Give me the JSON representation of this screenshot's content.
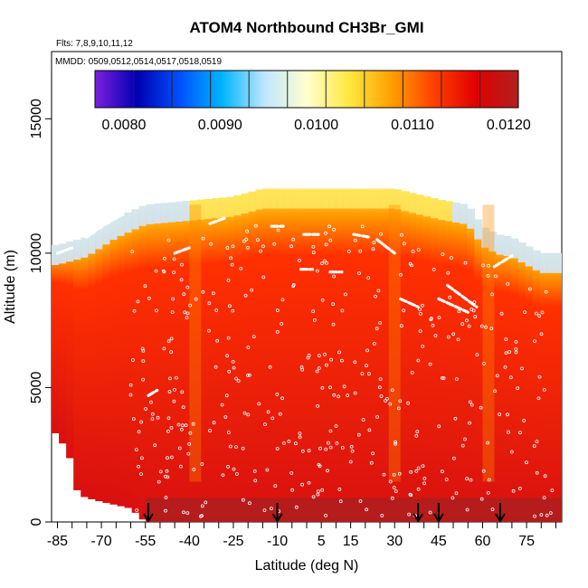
{
  "chart_data": {
    "type": "heatmap",
    "title": "ATOM4 Northbound CH3Br_GMI",
    "subtitle_flights": "Flts: 7,8,9,10,11,12",
    "subtitle_dates": "MMDD: 0509,0512,0514,0517,0518,0519",
    "xlabel": "Latitude (deg N)",
    "ylabel": "Altitude (m)",
    "xlim": [
      -87,
      87
    ],
    "ylim": [
      0,
      17500
    ],
    "x_ticks": [
      -85,
      -70,
      -55,
      -40,
      -25,
      -10,
      5,
      15,
      30,
      45,
      60,
      75
    ],
    "y_ticks": [
      0,
      5000,
      10000,
      15000
    ],
    "colorbar": {
      "range": [
        0.0077,
        0.0121
      ],
      "ticks": [
        0.008,
        0.009,
        0.01,
        0.011,
        0.012
      ],
      "tick_labels": [
        "0.0080",
        "0.0090",
        "0.0100",
        "0.0110",
        "0.0120"
      ],
      "colors": [
        "#7b1fe0",
        "#0000b0",
        "#0050ff",
        "#00b4ff",
        "#bfe6ff",
        "#ffffd0",
        "#ffe840",
        "#ffa000",
        "#ff4000",
        "#e00000",
        "#b02020"
      ]
    },
    "model_field": {
      "description_values": "CH3Br mixing ratio, latitude x altitude curtain",
      "top_altitude_by_lat": [
        [
          -85,
          10300
        ],
        [
          -75,
          10600
        ],
        [
          -65,
          11300
        ],
        [
          -55,
          11800
        ],
        [
          -45,
          11900
        ],
        [
          -35,
          12000
        ],
        [
          -25,
          12100
        ],
        [
          -15,
          12400
        ],
        [
          0,
          12400
        ],
        [
          15,
          12400
        ],
        [
          30,
          12400
        ],
        [
          45,
          12000
        ],
        [
          55,
          11800
        ],
        [
          60,
          11000
        ],
        [
          65,
          10700
        ],
        [
          70,
          10600
        ],
        [
          80,
          10000
        ]
      ],
      "bottom_altitude_by_lat": [
        [
          -85,
          3300
        ],
        [
          -80,
          2200
        ],
        [
          -78,
          1000
        ],
        [
          -72,
          800
        ],
        [
          -60,
          500
        ],
        [
          -55,
          0
        ],
        [
          85,
          0
        ]
      ],
      "enhancement_columns_lat": [
        -38,
        30,
        62
      ]
    },
    "flight_track_segments": [
      [
        [
          -85,
          10000
        ],
        [
          -80,
          10200
        ]
      ],
      [
        [
          -75,
          10600
        ],
        [
          -70,
          11000
        ],
        [
          -62,
          11500
        ]
      ],
      [
        [
          -45,
          10000
        ],
        [
          -40,
          10200
        ]
      ],
      [
        [
          -33,
          11100
        ],
        [
          -28,
          11300
        ]
      ],
      [
        [
          -12,
          11000
        ],
        [
          -8,
          11000
        ]
      ],
      [
        [
          -2,
          9400
        ],
        [
          2,
          9400
        ]
      ],
      [
        [
          8,
          9300
        ],
        [
          12,
          9300
        ]
      ],
      [
        [
          -1,
          10700
        ],
        [
          4,
          10700
        ]
      ],
      [
        [
          16,
          10700
        ],
        [
          21,
          10600
        ]
      ],
      [
        [
          24,
          10500
        ],
        [
          30,
          10000
        ]
      ],
      [
        [
          32,
          8300
        ],
        [
          38,
          8000
        ]
      ],
      [
        [
          48,
          8800
        ],
        [
          58,
          8000
        ]
      ],
      [
        [
          45,
          8300
        ],
        [
          55,
          7800
        ]
      ],
      [
        [
          64,
          9500
        ],
        [
          70,
          9900
        ]
      ],
      [
        [
          -54,
          4700
        ],
        [
          -51,
          4900
        ]
      ]
    ],
    "sonde_markers_lat": [
      -54,
      -10,
      38,
      45,
      66
    ],
    "sample_points_seed": 7
  }
}
